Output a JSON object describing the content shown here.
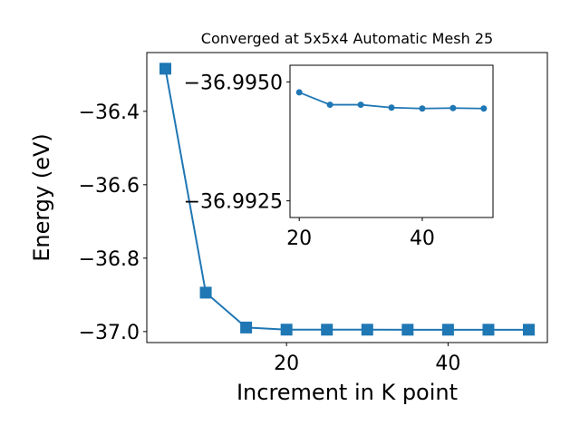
{
  "chart_data": [
    {
      "type": "line",
      "title": "Converged at 5x5x4 Automatic Mesh 25",
      "xlabel": "Increment in K point",
      "ylabel": "Energy (eV)",
      "xlim": [
        2.7,
        52.3
      ],
      "ylim": [
        -37.03,
        -36.24
      ],
      "xticks": [
        20,
        40
      ],
      "yticks": [
        -37.0,
        -36.8,
        -36.6,
        -36.4
      ],
      "ytick_labels": [
        "−37.0",
        "−36.8",
        "−36.6",
        "−36.4"
      ],
      "grid": false,
      "marker": "square",
      "color": "#1f77b4",
      "series": [
        {
          "x": [
            5,
            10,
            15,
            20,
            25,
            30,
            35,
            40,
            45,
            50
          ],
          "y": [
            -36.284,
            -36.894,
            -36.989,
            -36.9948,
            -36.9949,
            -36.9949,
            -36.995,
            -36.995,
            -36.995,
            -36.995
          ]
        }
      ]
    },
    {
      "type": "line",
      "title": "",
      "xlabel": "",
      "ylabel": "",
      "xlim": [
        18.5,
        51.5
      ],
      "ylim": [
        -36.99215,
        -36.99535
      ],
      "xticks": [
        20,
        40
      ],
      "yticks": [
        -36.995,
        -36.9925
      ],
      "ytick_labels": [
        "−36.9950",
        "−36.9925"
      ],
      "grid": false,
      "marker": "circle",
      "color": "#1f77b4",
      "series": [
        {
          "x": [
            20,
            25,
            30,
            35,
            40,
            45,
            50
          ],
          "y": [
            -36.99478,
            -36.99452,
            -36.99452,
            -36.99446,
            -36.99444,
            -36.99445,
            -36.99444
          ]
        }
      ]
    }
  ]
}
